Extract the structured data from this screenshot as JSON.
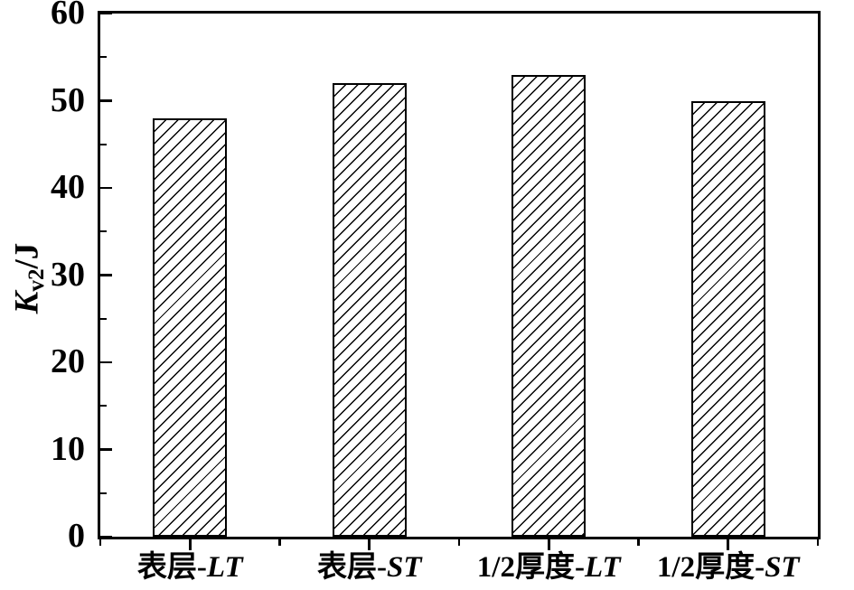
{
  "figure": {
    "background": "#ffffff",
    "line_color": "#000000"
  },
  "chart_data": {
    "type": "bar",
    "title": "",
    "xlabel": "",
    "ylabel": "Kv2/J",
    "ylabel_main": "K",
    "ylabel_sub": "v2",
    "ylabel_unit": "/J",
    "categories": [
      "表层-LT",
      "表层-ST",
      "1/2厚度-LT",
      "1/2厚度-ST"
    ],
    "category_parts": [
      {
        "prefix": "表层-",
        "italic": "LT"
      },
      {
        "prefix": "表层-",
        "italic": "ST"
      },
      {
        "prefix": "1/2厚度-",
        "italic": "LT"
      },
      {
        "prefix": "1/2厚度-",
        "italic": "ST"
      }
    ],
    "values": [
      48,
      52,
      53,
      50
    ],
    "ylim": [
      0,
      60
    ],
    "yticks": [
      0,
      10,
      20,
      30,
      40,
      50,
      60
    ],
    "y_minor_step": 5,
    "bar_fill": "#ffffff",
    "bar_hatch": "diagonal-forward-slash",
    "bar_edge_color": "#000000",
    "grid": false,
    "legend": false
  }
}
